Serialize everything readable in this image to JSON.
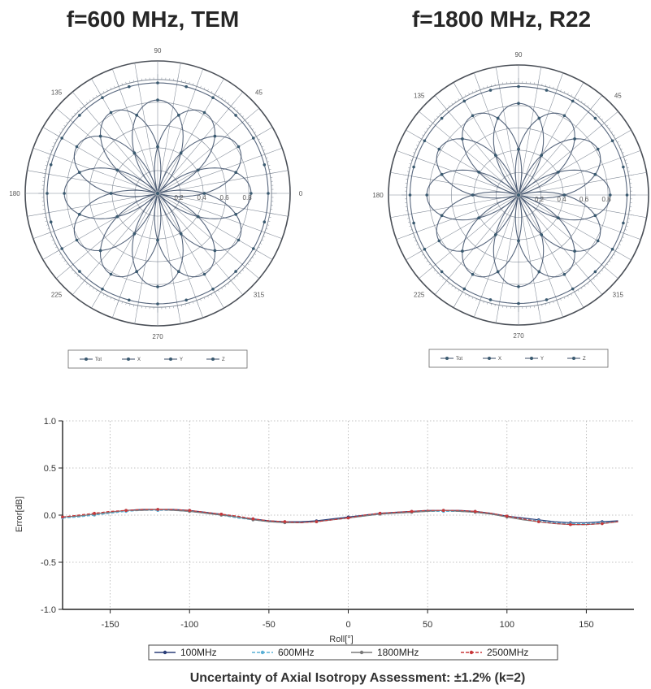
{
  "chart_data": [
    {
      "type": "polar",
      "title": "f=600 MHz, TEM",
      "angle_labels": [
        "0",
        "45",
        "90",
        "135",
        "180",
        "225",
        "270",
        "315"
      ],
      "radial_labels": [
        "0.2",
        "0.4",
        "0.6",
        "0.8"
      ],
      "rmax": 1.0,
      "legend": [
        "Tot",
        "X",
        "Y",
        "Z"
      ],
      "legend_placement": "bottom",
      "series": [
        {
          "name": "Tot",
          "shape": "circle",
          "r": 0.97
        },
        {
          "name": "X",
          "shape": "lobes",
          "r": 0.82,
          "lobes": 4,
          "offset_deg": 0
        },
        {
          "name": "Y",
          "shape": "lobes",
          "r": 0.82,
          "lobes": 4,
          "offset_deg": 60
        },
        {
          "name": "Z",
          "shape": "lobes",
          "r": 0.82,
          "lobes": 4,
          "offset_deg": 120
        }
      ]
    },
    {
      "type": "polar",
      "title": "f=1800 MHz, R22",
      "angle_labels": [
        "0",
        "45",
        "90",
        "135",
        "180",
        "225",
        "270",
        "315"
      ],
      "radial_labels": [
        "0.2",
        "0.4",
        "0.6",
        "0.8"
      ],
      "rmax": 1.0,
      "legend": [
        "Tot",
        "X",
        "Y",
        "Z"
      ],
      "legend_placement": "bottom",
      "series": [
        {
          "name": "Tot",
          "shape": "circle",
          "r": 0.97
        },
        {
          "name": "X",
          "shape": "lobes",
          "r": 0.82,
          "lobes": 4,
          "offset_deg": 0
        },
        {
          "name": "Y",
          "shape": "lobes",
          "r": 0.82,
          "lobes": 4,
          "offset_deg": 60
        },
        {
          "name": "Z",
          "shape": "lobes",
          "r": 0.82,
          "lobes": 4,
          "offset_deg": 120
        }
      ]
    },
    {
      "type": "line",
      "title": "",
      "xlabel": "Roll[°]",
      "ylabel": "Error[dB]",
      "xlim": [
        -180,
        180
      ],
      "ylim": [
        -1.0,
        1.0
      ],
      "xticks": [
        -150,
        -100,
        -50,
        0,
        50,
        100,
        150
      ],
      "yticks": [
        -1.0,
        -0.5,
        0.0,
        0.5,
        1.0
      ],
      "ytick_labels": [
        "-1.0",
        "-0.5",
        "0.0",
        "0.5",
        "1.0"
      ],
      "grid": true,
      "legend_placement": "bottom",
      "x": [
        -180,
        -170,
        -160,
        -150,
        -140,
        -130,
        -120,
        -110,
        -100,
        -90,
        -80,
        -70,
        -60,
        -50,
        -40,
        -30,
        -20,
        -10,
        0,
        10,
        20,
        30,
        40,
        50,
        60,
        70,
        80,
        90,
        100,
        110,
        120,
        130,
        140,
        150,
        160,
        170
      ],
      "series": [
        {
          "name": "100MHz",
          "color": "#2b3e78",
          "marker": "square",
          "values": [
            -0.02,
            -0.01,
            0.01,
            0.03,
            0.05,
            0.06,
            0.06,
            0.06,
            0.05,
            0.03,
            0.01,
            -0.02,
            -0.04,
            -0.06,
            -0.07,
            -0.07,
            -0.06,
            -0.04,
            -0.02,
            0.0,
            0.02,
            0.03,
            0.04,
            0.05,
            0.05,
            0.05,
            0.04,
            0.02,
            -0.01,
            -0.03,
            -0.05,
            -0.07,
            -0.08,
            -0.08,
            -0.07,
            -0.06
          ]
        },
        {
          "name": "600MHz",
          "color": "#5ab0d6",
          "marker": "dot",
          "values": [
            -0.03,
            -0.02,
            0.0,
            0.02,
            0.04,
            0.05,
            0.05,
            0.05,
            0.04,
            0.02,
            0.0,
            -0.03,
            -0.05,
            -0.07,
            -0.08,
            -0.08,
            -0.07,
            -0.05,
            -0.03,
            -0.01,
            0.01,
            0.02,
            0.03,
            0.04,
            0.04,
            0.04,
            0.03,
            0.01,
            -0.02,
            -0.04,
            -0.06,
            -0.08,
            -0.09,
            -0.09,
            -0.08,
            -0.07
          ]
        },
        {
          "name": "1800MHz",
          "color": "#7a7a7a",
          "marker": "circle",
          "values": [
            -0.02,
            -0.01,
            0.01,
            0.03,
            0.05,
            0.05,
            0.06,
            0.05,
            0.04,
            0.02,
            0.0,
            -0.02,
            -0.05,
            -0.07,
            -0.08,
            -0.08,
            -0.07,
            -0.05,
            -0.03,
            -0.01,
            0.01,
            0.02,
            0.03,
            0.04,
            0.05,
            0.04,
            0.03,
            0.01,
            -0.02,
            -0.05,
            -0.07,
            -0.09,
            -0.1,
            -0.1,
            -0.09,
            -0.07
          ]
        },
        {
          "name": "2500MHz",
          "color": "#c9383a",
          "marker": "dot",
          "values": [
            -0.02,
            0.0,
            0.02,
            0.04,
            0.05,
            0.06,
            0.06,
            0.06,
            0.05,
            0.03,
            0.01,
            -0.01,
            -0.04,
            -0.06,
            -0.07,
            -0.08,
            -0.07,
            -0.05,
            -0.03,
            0.0,
            0.02,
            0.03,
            0.04,
            0.05,
            0.05,
            0.05,
            0.04,
            0.02,
            -0.01,
            -0.04,
            -0.07,
            -0.09,
            -0.1,
            -0.1,
            -0.09,
            -0.07
          ]
        }
      ]
    }
  ],
  "caption": "Uncertainty of Axial Isotropy Assessment: ±1.2% (k=2)",
  "colors": {
    "polar_lines": "#3a4b66",
    "polar_grid": "#7f8895",
    "polar_markers": "#3a5a70",
    "grid": "#b0b0b0"
  }
}
